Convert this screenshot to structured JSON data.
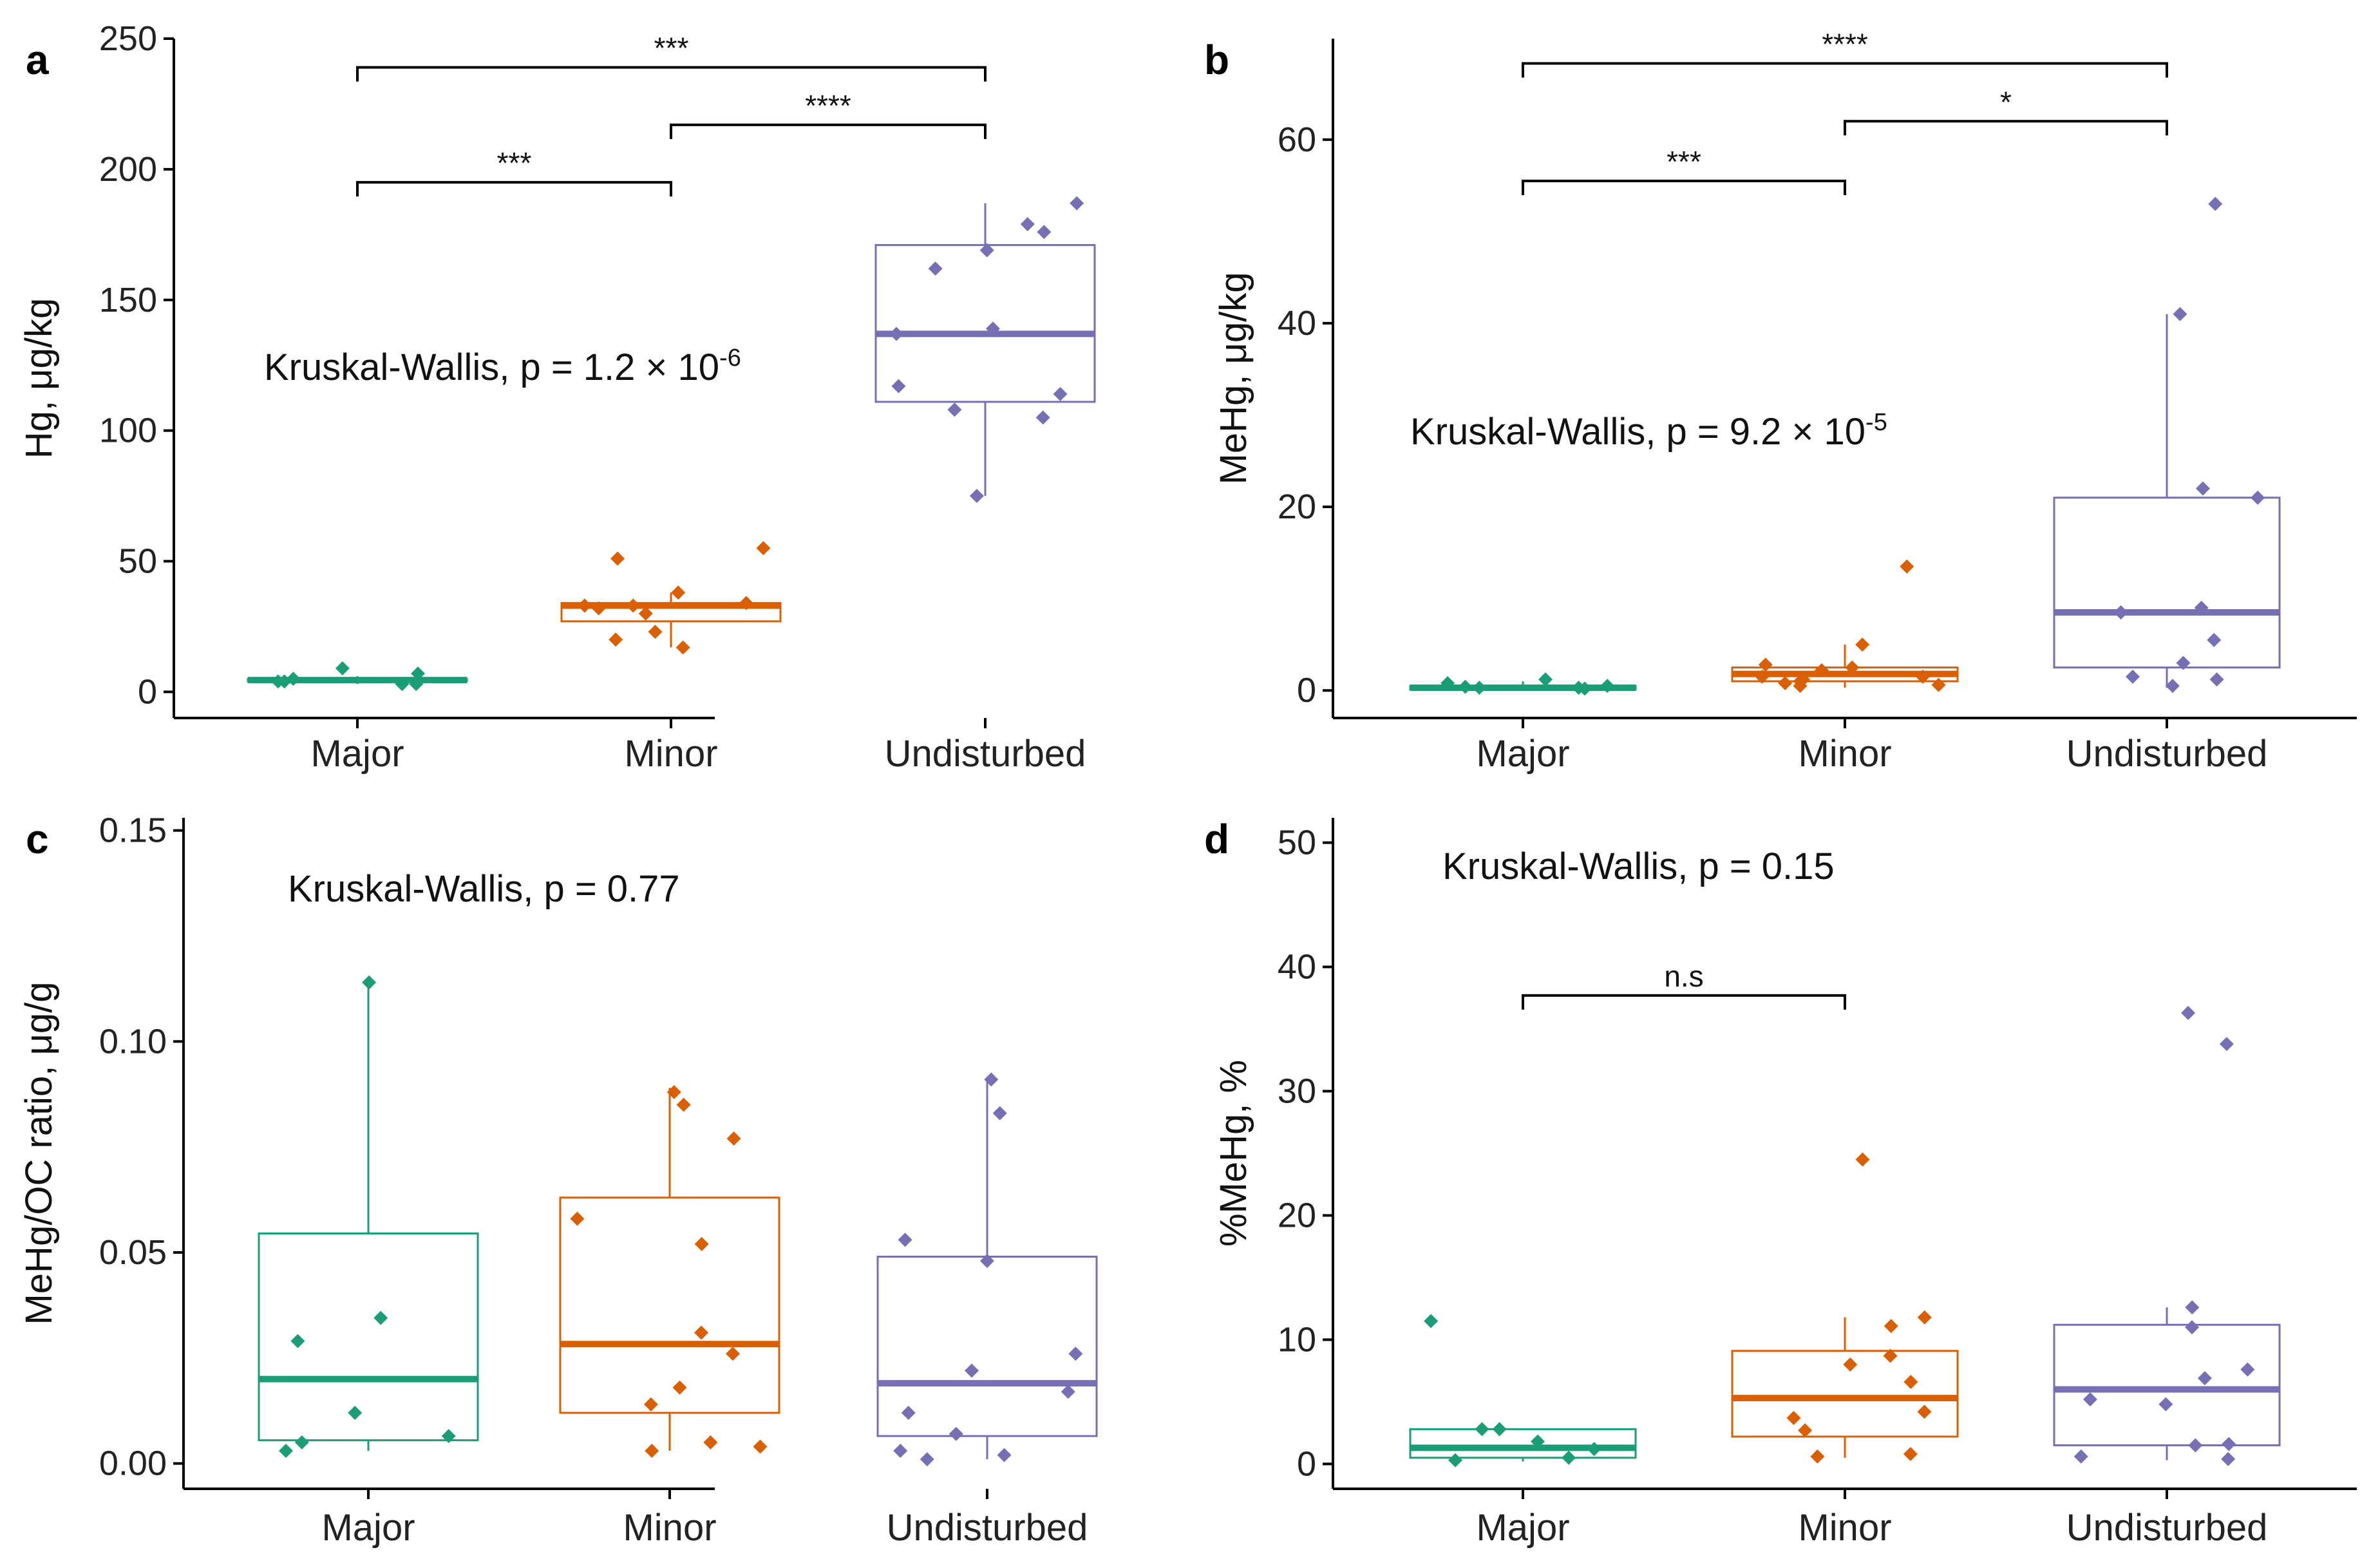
{
  "colors": {
    "Major": "#1b9e77",
    "Minor": "#d95f02",
    "Undisturbed": "#7570b3"
  },
  "chart_data": [
    {
      "panel": "a",
      "type": "box",
      "categories": [
        "Major",
        "Minor",
        "Undisturbed"
      ],
      "ylabel": "Hg, μg/kg",
      "ylim": [
        -10,
        250
      ],
      "yticks": [
        0,
        50,
        100,
        150,
        200,
        250
      ],
      "annotation": {
        "text": "Kruskal-Wallis, p = 1.2 × 10",
        "sup": "-6"
      },
      "boxes": [
        {
          "q1": 4,
          "median": 4.5,
          "q3": 5,
          "wlo": 3,
          "whi": 6
        },
        {
          "q1": 27,
          "median": 33,
          "q3": 34,
          "wlo": 17,
          "whi": 38
        },
        {
          "q1": 111,
          "median": 137,
          "q3": 171,
          "wlo": 75,
          "whi": 187
        }
      ],
      "points": [
        [
          3,
          4,
          9,
          7,
          5,
          3,
          4
        ],
        [
          17,
          30,
          33,
          38,
          32,
          33,
          34,
          20,
          23,
          55,
          51
        ],
        [
          75,
          108,
          114,
          117,
          105,
          137,
          139,
          162,
          169,
          176,
          179,
          187
        ]
      ],
      "comparisons": [
        {
          "from": 0,
          "to": 1,
          "y": 195,
          "label": "***"
        },
        {
          "from": 1,
          "to": 2,
          "y": 217,
          "label": "****"
        },
        {
          "from": 0,
          "to": 2,
          "y": 239,
          "label": "***"
        }
      ]
    },
    {
      "panel": "b",
      "type": "box",
      "categories": [
        "Major",
        "Minor",
        "Undisturbed"
      ],
      "ylabel": "MeHg, μg/kg",
      "ylim": [
        -3,
        71
      ],
      "yticks": [
        0,
        20,
        40,
        60
      ],
      "annotation": {
        "text": "Kruskal-Wallis, p = 9.2 × 10",
        "sup": "-5"
      },
      "boxes": [
        {
          "q1": 0.1,
          "median": 0.3,
          "q3": 0.5,
          "wlo": 0,
          "whi": 1
        },
        {
          "q1": 1,
          "median": 1.8,
          "q3": 2.5,
          "wlo": 0.3,
          "whi": 5
        },
        {
          "q1": 2.5,
          "median": 8.5,
          "q3": 21,
          "wlo": 0.3,
          "whi": 41
        }
      ],
      "points": [
        [
          0.3,
          0.5,
          1.2,
          0.8,
          0.4,
          0.2,
          0.3
        ],
        [
          13.5,
          2.5,
          1.5,
          1,
          0.8,
          2.8,
          2.2,
          1.5,
          5,
          0.5,
          0.6,
          1.2
        ],
        [
          53,
          41,
          22,
          21,
          9,
          8.5,
          5.5,
          3,
          1.5,
          1.2,
          0.5,
          8.5
        ]
      ],
      "comparisons": [
        {
          "from": 0,
          "to": 1,
          "y": 55.5,
          "label": "***"
        },
        {
          "from": 1,
          "to": 2,
          "y": 62,
          "label": "*"
        },
        {
          "from": 0,
          "to": 2,
          "y": 68.3,
          "label": "****"
        }
      ]
    },
    {
      "panel": "c",
      "type": "box",
      "categories": [
        "Major",
        "Minor",
        "Undisturbed"
      ],
      "ylabel": "MeHg/OC ratio, μg/g",
      "ylim": [
        -0.006,
        0.153
      ],
      "yticks": [
        0.0,
        0.05,
        0.1,
        0.15
      ],
      "yticklabels": [
        "0.00",
        "0.05",
        "0.10",
        "0.15"
      ],
      "annotation": {
        "text": "Kruskal-Wallis, p = 0.77",
        "sup": ""
      },
      "boxes": [
        {
          "q1": 0.0055,
          "median": 0.02,
          "q3": 0.0545,
          "wlo": 0.003,
          "whi": 0.114
        },
        {
          "q1": 0.012,
          "median": 0.0283,
          "q3": 0.063,
          "wlo": 0.003,
          "whi": 0.089
        },
        {
          "q1": 0.0065,
          "median": 0.019,
          "q3": 0.049,
          "wlo": 0.001,
          "whi": 0.091
        }
      ],
      "points": [
        [
          0.114,
          0.0345,
          0.029,
          0.012,
          0.0065,
          0.005,
          0.003
        ],
        [
          0.088,
          0.085,
          0.077,
          0.058,
          0.052,
          0.031,
          0.026,
          0.018,
          0.014,
          0.005,
          0.004,
          0.003
        ],
        [
          0.091,
          0.083,
          0.053,
          0.048,
          0.026,
          0.022,
          0.017,
          0.012,
          0.007,
          0.003,
          0.002,
          0.001
        ]
      ],
      "comparisons": []
    },
    {
      "panel": "d",
      "type": "box",
      "categories": [
        "Major",
        "Minor",
        "Undisturbed"
      ],
      "ylabel": "%MeHg, %",
      "ylim": [
        -2,
        52
      ],
      "yticks": [
        0,
        10,
        20,
        30,
        40,
        50
      ],
      "annotation": {
        "text": "Kruskal-Wallis, p = 0.15",
        "sup": ""
      },
      "boxes": [
        {
          "q1": 0.5,
          "median": 1.3,
          "q3": 2.8,
          "wlo": 0.2,
          "whi": 2.8
        },
        {
          "q1": 2.2,
          "median": 5.3,
          "q3": 9.1,
          "wlo": 0.5,
          "whi": 11.8
        },
        {
          "q1": 1.5,
          "median": 6.0,
          "q3": 11.2,
          "wlo": 0.3,
          "whi": 12.6
        }
      ],
      "points": [
        [
          11.5,
          2.8,
          2.8,
          1.8,
          1.2,
          0.5,
          0.3
        ],
        [
          24.5,
          11.8,
          11.1,
          8.7,
          8,
          6.6,
          4.2,
          3.7,
          2.7,
          0.8,
          0.6
        ],
        [
          36.3,
          33.8,
          12.6,
          11,
          7.6,
          6.9,
          5.2,
          4.8,
          1.6,
          1.5,
          0.4,
          0.6
        ]
      ],
      "comparisons": [
        {
          "from": 0,
          "to": 1,
          "y": 37.7,
          "label": "n.s"
        }
      ]
    }
  ]
}
